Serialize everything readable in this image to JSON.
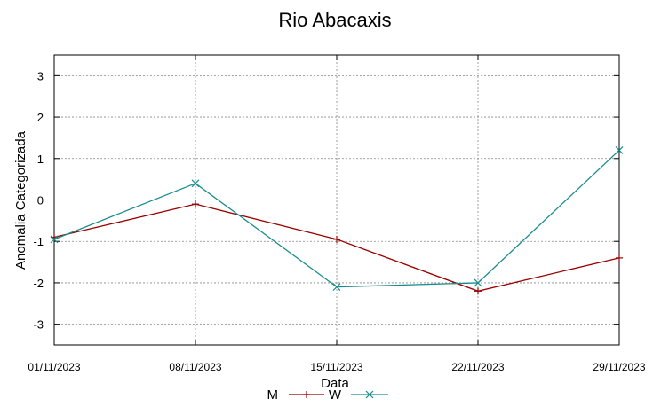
{
  "chart_data": {
    "type": "line",
    "title": "Rio Abacaxis",
    "xlabel": "Data",
    "ylabel": "Anomalia Categorizada",
    "categories": [
      "01/11/2023",
      "08/11/2023",
      "15/11/2023",
      "22/11/2023",
      "29/11/2023"
    ],
    "yticks": [
      3,
      2,
      1,
      0,
      -1,
      -2,
      -3
    ],
    "ylim": [
      -3.5,
      3.5
    ],
    "grid": true,
    "legend_position": "bottom",
    "series": [
      {
        "name": "M",
        "color": "#990000",
        "marker": "plus",
        "values": [
          -0.9,
          -0.1,
          -0.95,
          -2.2,
          -1.4
        ]
      },
      {
        "name": "W",
        "color": "#1a8c8c",
        "marker": "x",
        "values": [
          -0.95,
          0.4,
          -2.1,
          -2.0,
          1.2
        ]
      }
    ]
  }
}
